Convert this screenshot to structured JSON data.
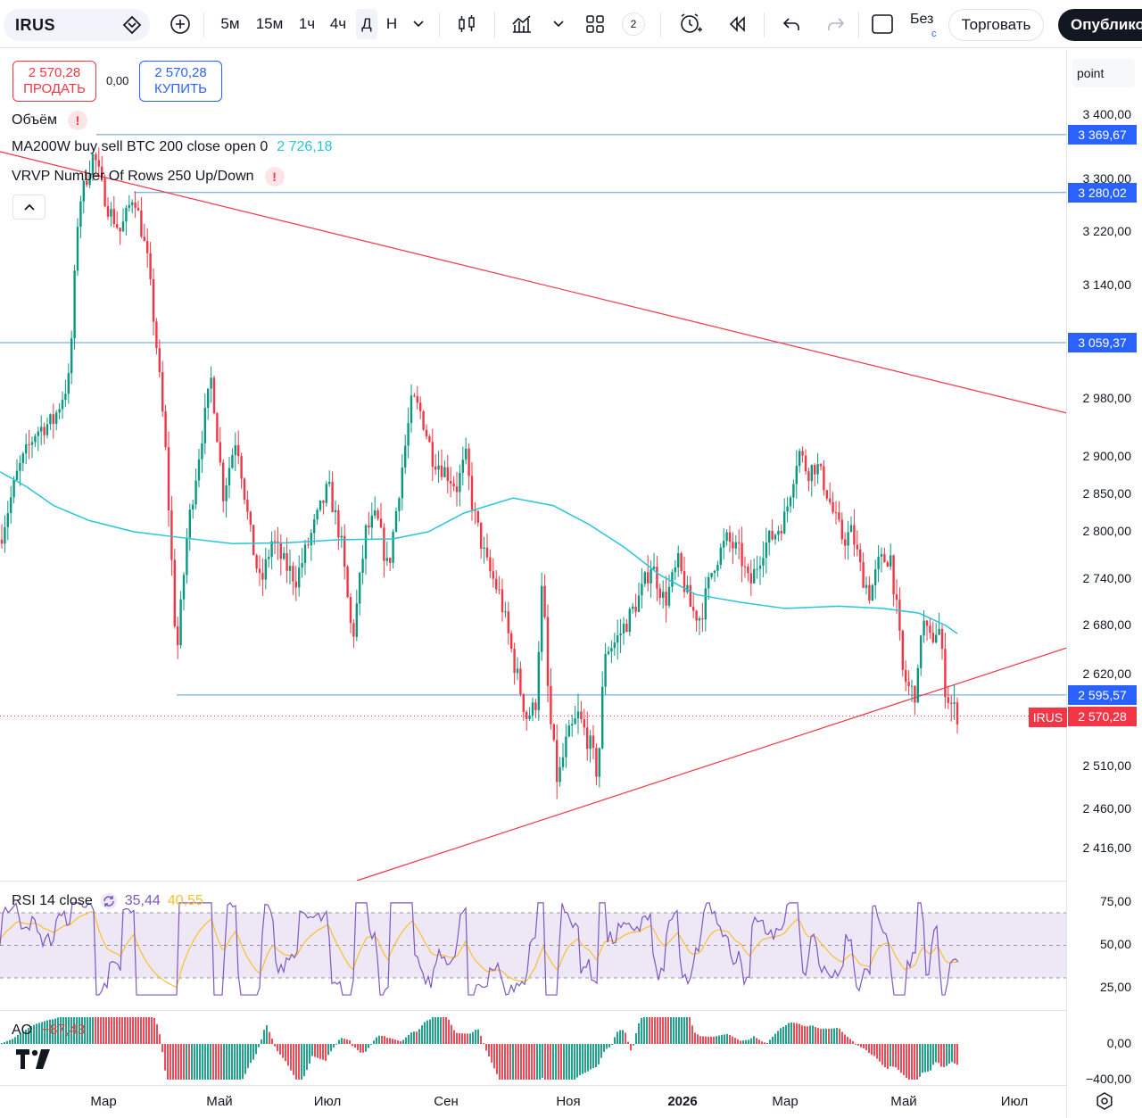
{
  "toolbar": {
    "symbol": "IRUS",
    "timeframes": [
      "5м",
      "15м",
      "1ч",
      "4ч",
      "Д",
      "Н"
    ],
    "active_timeframe": "Д",
    "layout_count": "2",
    "no_label": "Без",
    "no_label_sub": "с",
    "trade_label": "Торговать",
    "publish_label": "Опублико"
  },
  "trade": {
    "sell_price": "2 570,28",
    "sell_label": "ПРОДАТЬ",
    "spread": "0,00",
    "buy_price": "2 570,28",
    "buy_label": "КУПИТЬ"
  },
  "legends": {
    "volume": "Объём",
    "ma": "MA200W buy sell BTC 200 close open 0",
    "ma_value": "2 726,18",
    "vrvp": "VRVP Number Of Rows 250 Up/Down",
    "rsi": "RSI 14 close",
    "rsi_value": "35,44",
    "rsi_ma_value": "40,55",
    "ao": "AO",
    "ao_value": "−87,43"
  },
  "price_axis": {
    "unit": "point",
    "ticks": [
      "3 400,00",
      "3 300,00",
      "3 220,00",
      "3 140,00",
      "2 980,00",
      "2 900,00",
      "2 850,00",
      "2 800,00",
      "2 740,00",
      "2 680,00",
      "2 620,00",
      "2 510,00",
      "2 460,00",
      "2 416,00"
    ],
    "tick_values": [
      3400,
      3300,
      3220,
      3140,
      2980,
      2900,
      2850,
      2800,
      2740,
      2680,
      2620,
      2510,
      2460,
      2416
    ],
    "level_tags": [
      "3 369,67",
      "3 280,02",
      "3 059,37",
      "2 595,57"
    ],
    "level_values": [
      3369.67,
      3280.02,
      3059.37,
      2595.57
    ],
    "last_price": "2 570,28",
    "last_price_value": 2570.28,
    "symbol_tag": "IRUS"
  },
  "rsi_axis": {
    "ticks": [
      "75,00",
      "50,00",
      "25,00"
    ]
  },
  "ao_axis": {
    "ticks": [
      "0,00",
      "−400,00"
    ]
  },
  "time_axis": [
    "Мар",
    "Май",
    "Июл",
    "Сен",
    "Ноя",
    "2026",
    "Мар",
    "Май",
    "Июл"
  ],
  "colors": {
    "up": "#089981",
    "down": "#f23645",
    "ma": "#26c6da",
    "level": "#5b9bd5",
    "trend": "#f23645",
    "rsi": "#7e57c2",
    "rsi_ma": "#fbc02d",
    "rsi_band": "#ede7f6"
  },
  "icons": {
    "tradingview": "tradingview-logo-icon",
    "settings": "gear-icon"
  }
}
